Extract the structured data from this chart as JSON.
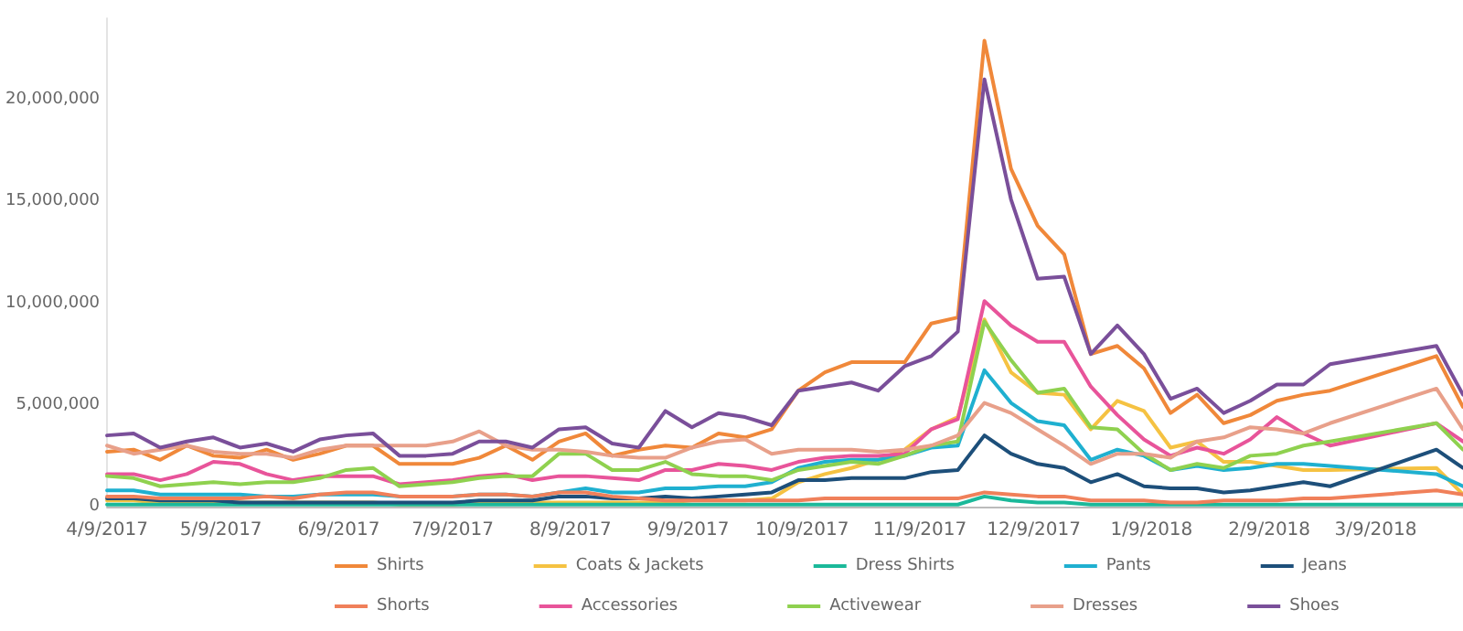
{
  "chart_data": {
    "type": "line",
    "x": [
      "2017-04-09",
      "2017-04-16",
      "2017-04-23",
      "2017-04-30",
      "2017-05-07",
      "2017-05-14",
      "2017-05-21",
      "2017-05-28",
      "2017-06-04",
      "2017-06-11",
      "2017-06-18",
      "2017-06-25",
      "2017-07-02",
      "2017-07-09",
      "2017-07-16",
      "2017-07-23",
      "2017-07-30",
      "2017-08-06",
      "2017-08-13",
      "2017-08-20",
      "2017-08-27",
      "2017-09-03",
      "2017-09-10",
      "2017-09-17",
      "2017-09-24",
      "2017-10-01",
      "2017-10-08",
      "2017-10-15",
      "2017-10-22",
      "2017-10-29",
      "2017-11-05",
      "2017-11-12",
      "2017-11-19",
      "2017-11-26",
      "2017-12-03",
      "2017-12-10",
      "2017-12-17",
      "2017-12-24",
      "2017-12-31",
      "2018-01-07",
      "2018-01-14",
      "2018-01-21",
      "2018-01-28",
      "2018-02-04",
      "2018-02-11",
      "2018-02-18",
      "2018-02-25",
      "2018-03-25",
      "2018-04-01"
    ],
    "series": [
      {
        "name": "Shirts",
        "color": "#f0883a",
        "values": [
          2700000,
          2800000,
          2300000,
          3000000,
          2500000,
          2400000,
          2800000,
          2300000,
          2600000,
          3000000,
          3000000,
          2100000,
          2100000,
          2100000,
          2400000,
          3000000,
          2300000,
          3200000,
          3600000,
          2500000,
          2800000,
          3000000,
          2900000,
          3600000,
          3400000,
          3800000,
          5700000,
          6600000,
          7100000,
          7100000,
          7100000,
          9000000,
          9300000,
          22900000,
          16600000,
          13800000,
          12400000,
          7500000,
          7900000,
          6800000,
          4600000,
          5500000,
          4100000,
          4500000,
          5200000,
          5500000,
          5700000,
          7400000,
          4900000
        ]
      },
      {
        "name": "Coats & Jackets",
        "color": "#f5c242",
        "values": [
          300000,
          300000,
          200000,
          200000,
          200000,
          200000,
          200000,
          200000,
          200000,
          200000,
          200000,
          100000,
          100000,
          100000,
          200000,
          200000,
          200000,
          200000,
          200000,
          200000,
          200000,
          200000,
          300000,
          300000,
          300000,
          400000,
          1200000,
          1600000,
          1900000,
          2300000,
          2800000,
          3800000,
          4400000,
          9200000,
          6600000,
          5600000,
          5500000,
          3800000,
          5200000,
          4700000,
          2900000,
          3200000,
          2200000,
          2200000,
          2000000,
          1800000,
          1800000,
          1900000,
          600000
        ]
      },
      {
        "name": "Dress Shirts",
        "color": "#1bb99a",
        "values": [
          100000,
          100000,
          100000,
          100000,
          100000,
          100000,
          100000,
          100000,
          100000,
          100000,
          100000,
          100000,
          100000,
          100000,
          100000,
          100000,
          100000,
          100000,
          100000,
          100000,
          100000,
          100000,
          100000,
          100000,
          100000,
          100000,
          100000,
          100000,
          100000,
          100000,
          100000,
          100000,
          100000,
          500000,
          300000,
          200000,
          200000,
          100000,
          100000,
          100000,
          100000,
          100000,
          100000,
          100000,
          100000,
          100000,
          100000,
          100000,
          100000
        ]
      },
      {
        "name": "Pants",
        "color": "#1fb0d0",
        "values": [
          800000,
          800000,
          600000,
          600000,
          600000,
          600000,
          500000,
          500000,
          600000,
          600000,
          600000,
          500000,
          500000,
          500000,
          600000,
          600000,
          500000,
          700000,
          900000,
          700000,
          700000,
          900000,
          900000,
          1000000,
          1000000,
          1200000,
          1900000,
          2200000,
          2300000,
          2300000,
          2500000,
          2900000,
          3000000,
          6700000,
          5100000,
          4200000,
          4000000,
          2300000,
          2800000,
          2500000,
          1800000,
          2000000,
          1800000,
          1900000,
          2100000,
          2100000,
          2000000,
          1600000,
          1000000
        ]
      },
      {
        "name": "Jeans",
        "color": "#1d4f7a",
        "values": [
          400000,
          400000,
          300000,
          300000,
          300000,
          200000,
          200000,
          200000,
          200000,
          200000,
          200000,
          200000,
          200000,
          200000,
          300000,
          300000,
          300000,
          500000,
          500000,
          400000,
          400000,
          500000,
          400000,
          500000,
          600000,
          700000,
          1300000,
          1300000,
          1400000,
          1400000,
          1400000,
          1700000,
          1800000,
          3500000,
          2600000,
          2100000,
          1900000,
          1200000,
          1600000,
          1000000,
          900000,
          900000,
          700000,
          800000,
          1000000,
          1200000,
          1000000,
          2800000,
          1900000
        ]
      },
      {
        "name": "Shorts",
        "color": "#f0805a",
        "values": [
          500000,
          500000,
          400000,
          400000,
          400000,
          400000,
          500000,
          400000,
          600000,
          700000,
          700000,
          500000,
          500000,
          500000,
          600000,
          600000,
          500000,
          700000,
          700000,
          500000,
          400000,
          300000,
          300000,
          300000,
          300000,
          300000,
          300000,
          400000,
          400000,
          400000,
          400000,
          400000,
          400000,
          700000,
          600000,
          500000,
          500000,
          300000,
          300000,
          300000,
          200000,
          200000,
          300000,
          300000,
          300000,
          400000,
          400000,
          800000,
          600000
        ]
      },
      {
        "name": "Accessories",
        "color": "#e8549a",
        "values": [
          1600000,
          1600000,
          1300000,
          1600000,
          2200000,
          2100000,
          1600000,
          1300000,
          1500000,
          1500000,
          1500000,
          1100000,
          1200000,
          1300000,
          1500000,
          1600000,
          1300000,
          1500000,
          1500000,
          1400000,
          1300000,
          1800000,
          1800000,
          2100000,
          2000000,
          1800000,
          2200000,
          2400000,
          2500000,
          2500000,
          2600000,
          3800000,
          4300000,
          10100000,
          8900000,
          8100000,
          8100000,
          5900000,
          4500000,
          3300000,
          2500000,
          2900000,
          2600000,
          3300000,
          4400000,
          3600000,
          3000000,
          4100000,
          3200000
        ]
      },
      {
        "name": "Activewear",
        "color": "#8fd14f",
        "values": [
          1500000,
          1400000,
          1000000,
          1100000,
          1200000,
          1100000,
          1200000,
          1200000,
          1400000,
          1800000,
          1900000,
          1000000,
          1100000,
          1200000,
          1400000,
          1500000,
          1500000,
          2600000,
          2600000,
          1800000,
          1800000,
          2200000,
          1600000,
          1500000,
          1500000,
          1300000,
          1800000,
          2000000,
          2200000,
          2100000,
          2500000,
          3000000,
          3200000,
          9100000,
          7200000,
          5600000,
          5800000,
          3900000,
          3800000,
          2600000,
          1800000,
          2100000,
          1900000,
          2500000,
          2600000,
          3000000,
          3200000,
          4100000,
          2800000
        ]
      },
      {
        "name": "Dresses",
        "color": "#e8a08a",
        "values": [
          3000000,
          2600000,
          2800000,
          3000000,
          2700000,
          2600000,
          2600000,
          2400000,
          2800000,
          3000000,
          3000000,
          3000000,
          3000000,
          3200000,
          3700000,
          3000000,
          2800000,
          2800000,
          2700000,
          2500000,
          2400000,
          2400000,
          2900000,
          3200000,
          3300000,
          2600000,
          2800000,
          2800000,
          2800000,
          2700000,
          2800000,
          3000000,
          3500000,
          5100000,
          4600000,
          3800000,
          3000000,
          2100000,
          2600000,
          2600000,
          2400000,
          3200000,
          3400000,
          3900000,
          3800000,
          3600000,
          4100000,
          5800000,
          3800000
        ]
      },
      {
        "name": "Shoes",
        "color": "#7a4f9a",
        "values": [
          3500000,
          3600000,
          2900000,
          3200000,
          3400000,
          2900000,
          3100000,
          2700000,
          3300000,
          3500000,
          3600000,
          2500000,
          2500000,
          2600000,
          3200000,
          3200000,
          2900000,
          3800000,
          3900000,
          3100000,
          2900000,
          4700000,
          3900000,
          4600000,
          4400000,
          4000000,
          5700000,
          5900000,
          6100000,
          5700000,
          6900000,
          7400000,
          8600000,
          21000000,
          15100000,
          11200000,
          11300000,
          7500000,
          8900000,
          7500000,
          5300000,
          5800000,
          4600000,
          5200000,
          6000000,
          6000000,
          7000000,
          7900000,
          5500000
        ]
      }
    ],
    "xlim": [
      "2017-04-09",
      "2018-04-01"
    ],
    "xticks": [
      {
        "value": "2017-04-09",
        "label": "4/9/2017"
      },
      {
        "value": "2017-05-09",
        "label": "5/9/2017"
      },
      {
        "value": "2017-06-09",
        "label": "6/9/2017"
      },
      {
        "value": "2017-07-09",
        "label": "7/9/2017"
      },
      {
        "value": "2017-08-09",
        "label": "8/9/2017"
      },
      {
        "value": "2017-09-09",
        "label": "9/9/2017"
      },
      {
        "value": "2017-10-09",
        "label": "10/9/2017"
      },
      {
        "value": "2017-11-09",
        "label": "11/9/2017"
      },
      {
        "value": "2017-12-09",
        "label": "12/9/2017"
      },
      {
        "value": "2018-01-09",
        "label": "1/9/2018"
      },
      {
        "value": "2018-02-09",
        "label": "2/9/2018"
      },
      {
        "value": "2018-03-09",
        "label": "3/9/2018"
      }
    ],
    "ylim": [
      0,
      24000000
    ],
    "yticks": [
      0,
      {
        "value": 5000000,
        "label": "5,000,000"
      },
      {
        "value": 10000000,
        "label": "10,000,000"
      },
      {
        "value": 15000000,
        "label": "15,000,000"
      },
      {
        "value": 20000000,
        "label": "20,000,000"
      }
    ],
    "grid": false,
    "legend": "bottom"
  }
}
